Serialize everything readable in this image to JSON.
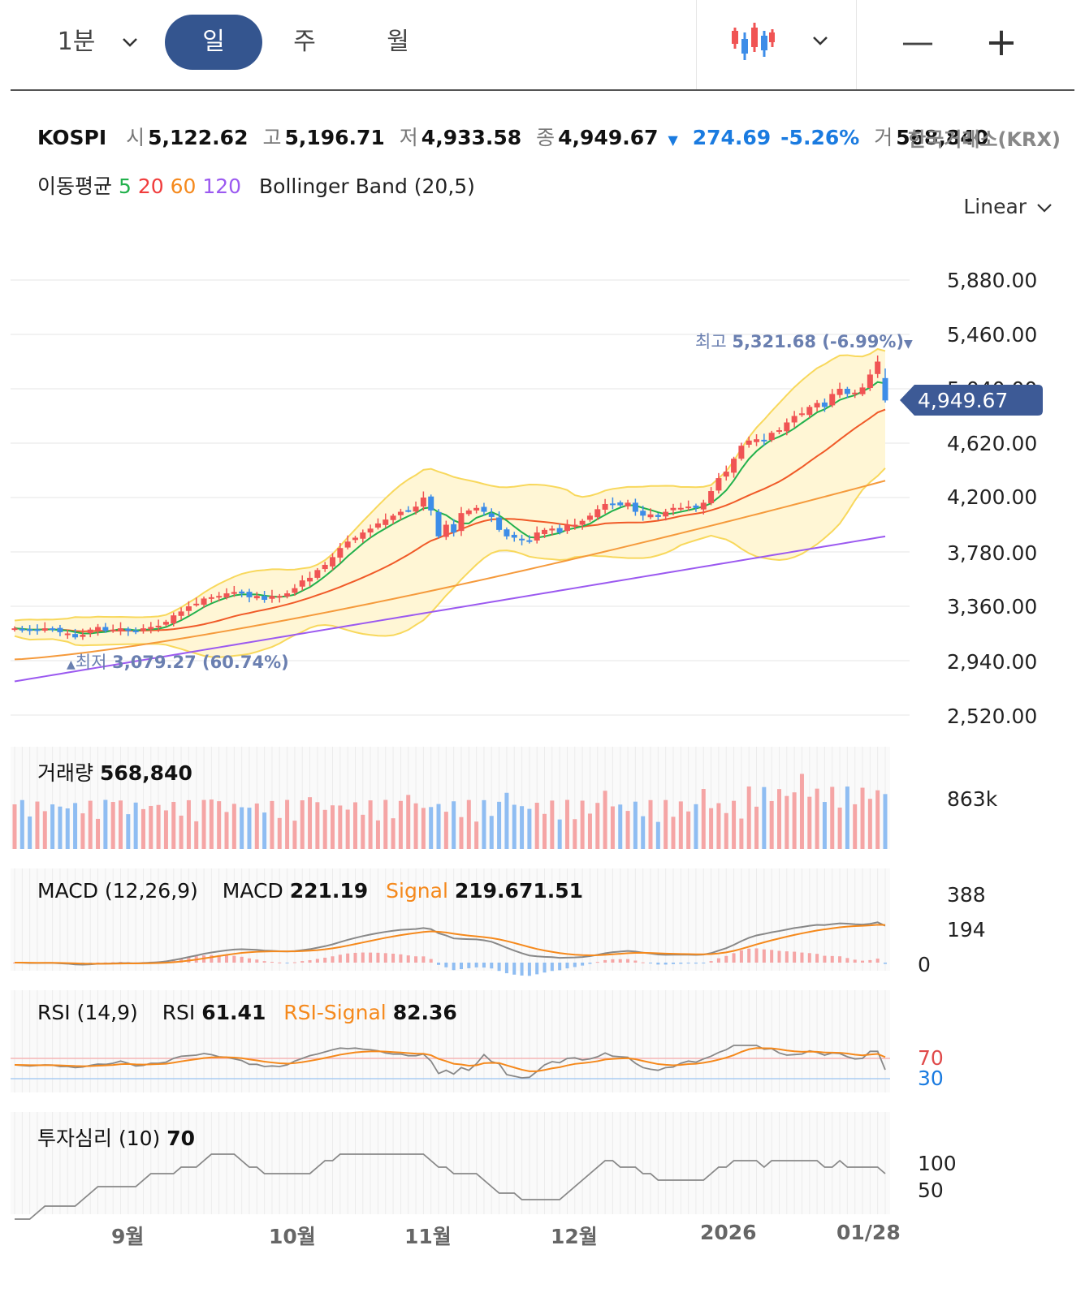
{
  "toolbar": {
    "minute_label": "1분",
    "tabs": [
      "일",
      "주",
      "월"
    ],
    "active_tab": "일",
    "chart_type_icon": "candlestick-icon",
    "zoom_out": "—",
    "zoom_in": "+"
  },
  "quote": {
    "symbol": "KOSPI",
    "open_label": "시",
    "open": "5,122.62",
    "high_label": "고",
    "high": "5,196.71",
    "low_label": "저",
    "low": "4,933.58",
    "close_label": "종",
    "close": "4,949.67",
    "change_arrow": "▼",
    "change": "274.69",
    "change_pct": "-5.26%",
    "volume_label": "거",
    "volume": "568,840",
    "exchange": "한국거래소(KRX)"
  },
  "indicators": {
    "ma_label": "이동평균",
    "ma_periods": [
      "5",
      "20",
      "60",
      "120"
    ],
    "bb_label": "Bollinger Band (20,5)"
  },
  "scale_mode": "Linear",
  "colors": {
    "up": "#f05454",
    "down": "#3d8de8",
    "ma5": "#22b14c",
    "ma20": "#f05a28",
    "ma60": "#f59a3c",
    "ma120": "#9b59f0",
    "band_fill": "#fff6d5",
    "band_line": "#f8d85c",
    "price_tag": "#3d5a96"
  },
  "price_axis": [
    "5,880.00",
    "5,460.00",
    "5,040.00",
    "4,620.00",
    "4,200.00",
    "3,780.00",
    "3,360.00",
    "2,940.00",
    "2,520.00"
  ],
  "current_price_tag": "4,949.67",
  "high_marker": {
    "label": "최고",
    "value": "5,321.68 (-6.99%)",
    "arrow": "▼"
  },
  "low_marker": {
    "arrow": "▲",
    "label": "최저",
    "value": "3,079.27 (60.74%)"
  },
  "volume_panel": {
    "label": "거래량",
    "value": "568,840",
    "axis": "863k"
  },
  "macd_panel": {
    "label": "MACD (12,26,9)",
    "macd_label": "MACD",
    "macd_value": "221.19",
    "signal_label": "Signal",
    "signal_value": "219.671.51",
    "axis": [
      "388",
      "194",
      "0"
    ]
  },
  "rsi_panel": {
    "label": "RSI (14,9)",
    "rsi_label": "RSI",
    "rsi_value": "61.41",
    "signal_label": "RSI-Signal",
    "signal_value": "82.36",
    "axis_high": "70",
    "axis_low": "30"
  },
  "sentiment_panel": {
    "label": "투자심리 (10)",
    "value": "70",
    "axis": [
      "100",
      "50"
    ]
  },
  "x_axis": [
    "9월",
    "10월",
    "11월",
    "12월",
    "2026",
    "01/28"
  ],
  "chart_data": {
    "type": "candlestick",
    "y_range": [
      2520,
      5880
    ],
    "closes": [
      3190,
      3180,
      3170,
      3180,
      3190,
      3185,
      3160,
      3150,
      3120,
      3140,
      3180,
      3200,
      3170,
      3180,
      3190,
      3170,
      3160,
      3190,
      3200,
      3210,
      3240,
      3290,
      3320,
      3360,
      3380,
      3420,
      3430,
      3440,
      3460,
      3470,
      3460,
      3430,
      3440,
      3410,
      3440,
      3440,
      3460,
      3500,
      3560,
      3580,
      3640,
      3680,
      3740,
      3810,
      3860,
      3890,
      3930,
      3960,
      4000,
      4030,
      4060,
      4090,
      4100,
      4130,
      4200,
      4100,
      3900,
      3990,
      3930,
      4080,
      4100,
      4120,
      4090,
      4050,
      3950,
      3900,
      3890,
      3870,
      3860,
      3930,
      3950,
      3960,
      3930,
      3990,
      3990,
      4020,
      4060,
      4110,
      4150,
      4150,
      4140,
      4160,
      4090,
      4060,
      4070,
      4050,
      4090,
      4120,
      4120,
      4130,
      4120,
      4160,
      4250,
      4350,
      4400,
      4500,
      4600,
      4640,
      4650,
      4640,
      4700,
      4720,
      4780,
      4830,
      4850,
      4900,
      4930,
      4900,
      5000,
      5040,
      5000,
      5010,
      5050,
      5150,
      5250,
      4950
    ]
  }
}
